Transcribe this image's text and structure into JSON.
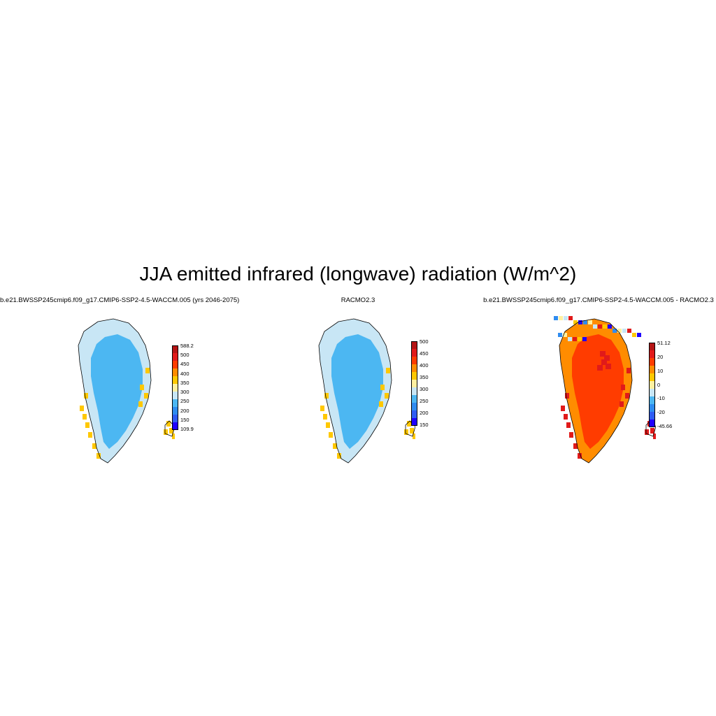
{
  "title": "JJA emitted infrared (longwave) radiation (W/m^2)",
  "panels": [
    {
      "name": "model",
      "title": "b.e21.BWSSP245cmip6.f09_g17.CMIP6-SSP2-4.5-WACCM.005 (yrs 2046-2075)",
      "colorbar": {
        "colors": [
          "#1f00ff",
          "#2f5cf2",
          "#2f8cf0",
          "#4cb7f2",
          "#c8e6f5",
          "#fff0a0",
          "#ffc800",
          "#ff8c00",
          "#ff3c00",
          "#e11a1a",
          "#b41414"
        ],
        "tick_labels": [
          "588.2",
          "500",
          "450",
          "400",
          "350",
          "300",
          "250",
          "200",
          "150",
          "109.9"
        ]
      },
      "interior_color": "#4cb7f2",
      "edge_color": "#c8e6f5",
      "coast_color": "#ffc800"
    },
    {
      "name": "obs",
      "title": "RACMO2.3",
      "colorbar": {
        "colors": [
          "#1f00ff",
          "#2f5cf2",
          "#2f8cf0",
          "#4cb7f2",
          "#c8e6f5",
          "#fff0a0",
          "#ffc800",
          "#ff8c00",
          "#ff3c00",
          "#e11a1a",
          "#b41414"
        ],
        "tick_labels": [
          "500",
          "450",
          "400",
          "350",
          "300",
          "250",
          "200",
          "150"
        ]
      },
      "interior_color": "#4cb7f2",
      "edge_color": "#c8e6f5",
      "coast_color": "#ffc800"
    },
    {
      "name": "diff",
      "title": "b.e21.BWSSP245cmip6.f09_g17.CMIP6-SSP2-4.5-WACCM.005 - RACMO2.3",
      "colorbar": {
        "colors": [
          "#1f00ff",
          "#2f5cf2",
          "#2f8cf0",
          "#4cb7f2",
          "#c8e6f5",
          "#fff0a0",
          "#ffc800",
          "#ff8c00",
          "#ff3c00",
          "#e11a1a",
          "#b41414"
        ],
        "tick_labels": [
          "51.12",
          "20",
          "10",
          "0",
          "-10",
          "-20",
          "-45.66"
        ]
      },
      "interior_color": "#ff3c00",
      "edge_color": "#ff8c00",
      "coast_color": "#e11a1a"
    }
  ]
}
